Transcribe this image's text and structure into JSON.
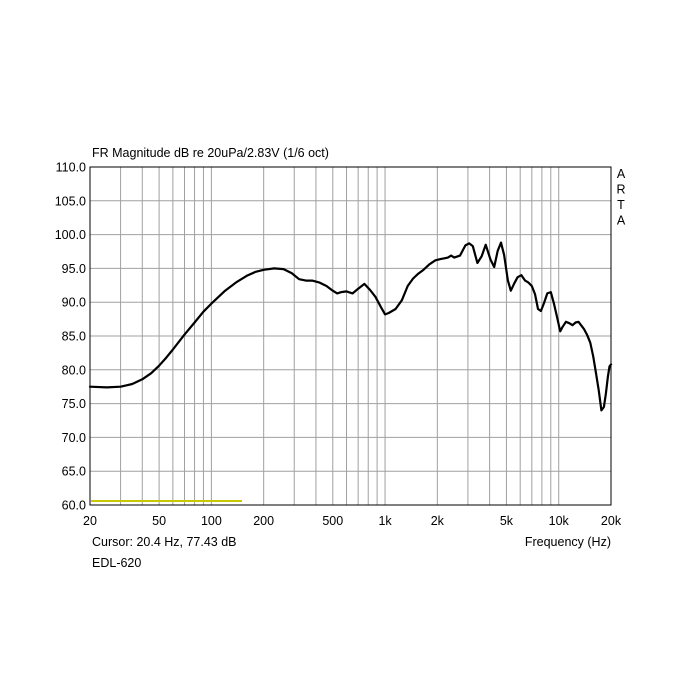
{
  "chart_data": {
    "type": "line",
    "title": "FR Magnitude dB re 20uPa/2.83V (1/6 oct)",
    "watermark": [
      "A",
      "R",
      "T",
      "A"
    ],
    "xlabel": "Frequency (Hz)",
    "ylabel": "",
    "x_scale": "log",
    "xlim": [
      20,
      20000
    ],
    "ylim": [
      60,
      110
    ],
    "grid": true,
    "y_ticks": [
      60,
      65,
      70,
      75,
      80,
      85,
      90,
      95,
      100,
      105,
      110
    ],
    "y_tick_labels": [
      "60.0",
      "65.0",
      "70.0",
      "75.0",
      "80.0",
      "85.0",
      "90.0",
      "95.0",
      "100.0",
      "105.0",
      "110.0"
    ],
    "x_ticks": [
      20,
      50,
      100,
      200,
      500,
      1000,
      2000,
      5000,
      10000,
      20000
    ],
    "x_tick_labels": [
      "20",
      "50",
      "100",
      "200",
      "500",
      "1k",
      "2k",
      "5k",
      "10k",
      "20k"
    ],
    "cursor_text": "Cursor: 20.4 Hz, 77.43 dB",
    "device_label": "EDL-620",
    "line_color": "#000000",
    "marker_color": "#c8c800",
    "marker_segment": {
      "x": [
        20,
        150
      ],
      "y": 60.6
    },
    "series": [
      {
        "x": [
          20,
          25,
          30,
          35,
          40,
          45,
          50,
          55,
          60,
          70,
          80,
          90,
          100,
          120,
          140,
          160,
          180,
          200,
          230,
          260,
          290,
          320,
          350,
          380,
          420,
          460,
          500,
          530,
          560,
          600,
          650,
          700,
          760,
          820,
          880,
          950,
          1000,
          1050,
          1150,
          1250,
          1350,
          1450,
          1550,
          1650,
          1800,
          1950,
          2100,
          2200,
          2300,
          2400,
          2500,
          2700,
          2900,
          3050,
          3200,
          3400,
          3600,
          3800,
          4050,
          4250,
          4450,
          4650,
          4850,
          5100,
          5300,
          5550,
          5800,
          6100,
          6400,
          6700,
          7000,
          7300,
          7600,
          7900,
          8200,
          8600,
          9000,
          9400,
          9800,
          10200,
          10500,
          11000,
          11500,
          12000,
          12500,
          13000,
          14000,
          14600,
          15200,
          15800,
          16400,
          17000,
          17600,
          18200,
          18700,
          19200,
          19600,
          20000
        ],
        "y": [
          77.5,
          77.4,
          77.5,
          77.9,
          78.6,
          79.5,
          80.6,
          81.8,
          83.0,
          85.2,
          87.0,
          88.6,
          89.8,
          91.7,
          93.0,
          93.9,
          94.5,
          94.8,
          95.0,
          94.9,
          94.3,
          93.4,
          93.2,
          93.2,
          92.9,
          92.4,
          91.7,
          91.3,
          91.5,
          91.6,
          91.3,
          92.0,
          92.7,
          91.8,
          90.8,
          89.2,
          88.2,
          88.4,
          89.0,
          90.3,
          92.4,
          93.5,
          94.2,
          94.7,
          95.6,
          96.2,
          96.4,
          96.5,
          96.6,
          96.9,
          96.6,
          96.9,
          98.4,
          98.7,
          98.3,
          95.8,
          96.8,
          98.5,
          96.3,
          95.2,
          97.6,
          98.8,
          97.0,
          93.2,
          91.7,
          92.8,
          93.7,
          94.0,
          93.2,
          92.9,
          92.4,
          91.2,
          89.0,
          88.7,
          89.8,
          91.3,
          91.5,
          89.7,
          87.7,
          85.7,
          86.3,
          87.1,
          86.9,
          86.6,
          87.0,
          87.1,
          86.0,
          85.1,
          84.0,
          82.0,
          79.5,
          77.0,
          74.0,
          74.5,
          76.5,
          79.0,
          80.5,
          80.8
        ]
      }
    ]
  }
}
